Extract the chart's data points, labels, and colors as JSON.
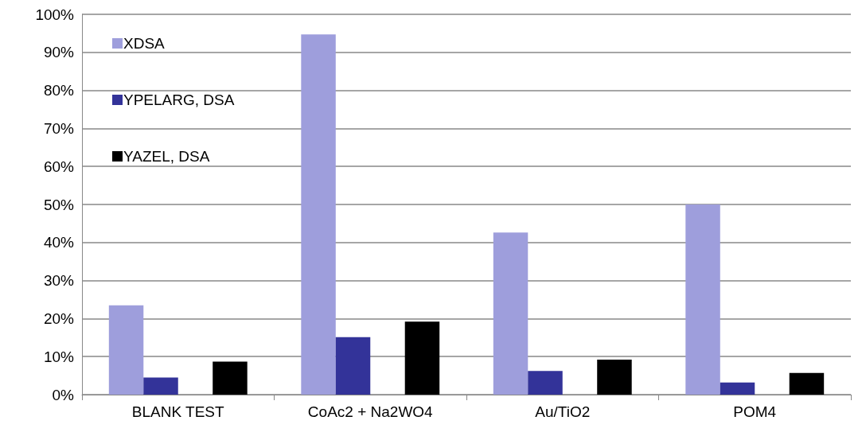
{
  "chart_data": {
    "type": "bar",
    "categories": [
      "BLANK TEST",
      "CoAc2 + Na2WO4",
      "Au/TiO2",
      "POM4"
    ],
    "series": [
      {
        "name": "XDSA",
        "color": "#9e9edc",
        "values": [
          23.5,
          94.7,
          42.6,
          50.0
        ]
      },
      {
        "name": "YPELARG, DSA",
        "color": "#333399",
        "values": [
          4.5,
          15.1,
          6.2,
          3.2
        ]
      },
      {
        "color": "#ccccee",
        "values": [
          null,
          null,
          null,
          null
        ]
      },
      {
        "name": "YAZEL, DSA",
        "color": "#000000",
        "values": [
          8.7,
          19.2,
          9.2,
          5.7
        ]
      }
    ],
    "ylim": [
      0,
      100
    ],
    "yticks": [
      {
        "value": 0,
        "label": "0%"
      },
      {
        "value": 10,
        "label": "10%"
      },
      {
        "value": 20,
        "label": "20%"
      },
      {
        "value": 30,
        "label": "30%"
      },
      {
        "value": 40,
        "label": "40%"
      },
      {
        "value": 50,
        "label": "50%"
      },
      {
        "value": 60,
        "label": "60%"
      },
      {
        "value": 70,
        "label": "70%"
      },
      {
        "value": 80,
        "label": "80%"
      },
      {
        "value": 90,
        "label": "90%"
      },
      {
        "value": 100,
        "label": "100%"
      }
    ],
    "grid": "y",
    "legend": "top left"
  }
}
